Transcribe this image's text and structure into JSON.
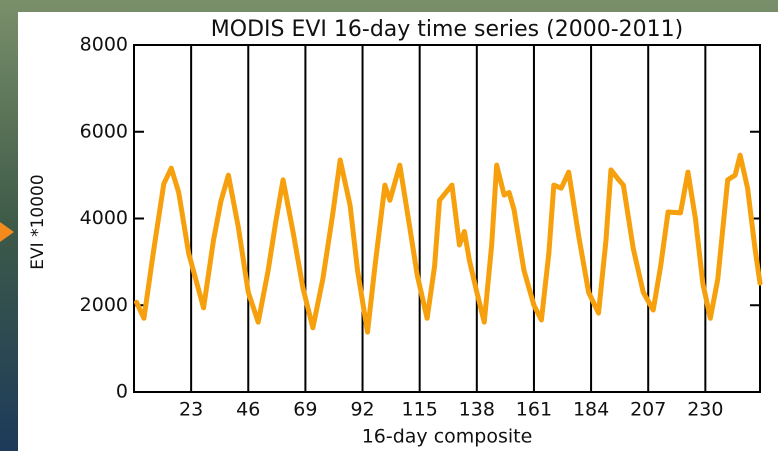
{
  "chart_data": {
    "type": "line",
    "title": "MODIS EVI 16-day time series (2000-2011)",
    "x_label": "16-day composite",
    "y_label": "EVI *10000",
    "xlim": [
      0,
      252
    ],
    "ylim": [
      0,
      8000
    ],
    "xticks": [
      23,
      46,
      69,
      92,
      115,
      138,
      161,
      184,
      207,
      230
    ],
    "yticks": [
      0,
      2000,
      4000,
      6000,
      8000
    ],
    "grid": true,
    "color": "#f5a00c",
    "x": [
      1,
      4,
      8,
      12,
      15,
      18,
      22,
      28,
      32,
      35,
      38,
      42,
      46,
      50,
      54,
      57,
      60,
      64,
      68,
      72,
      76,
      80,
      83,
      87,
      90,
      94,
      97,
      101,
      103,
      107,
      111,
      114,
      118,
      121,
      123,
      128,
      131,
      133,
      135,
      138,
      141,
      144,
      146,
      149,
      151,
      153,
      157,
      161,
      164,
      167,
      169,
      172,
      175,
      179,
      183,
      187,
      190,
      192,
      195,
      197,
      201,
      205,
      209,
      212,
      215,
      220,
      223,
      226,
      229,
      232,
      235,
      239,
      242,
      244,
      247,
      250,
      252
    ],
    "values": [
      2070,
      1700,
      3300,
      4800,
      5160,
      4600,
      3200,
      1940,
      3500,
      4400,
      5000,
      3800,
      2300,
      1610,
      2800,
      3900,
      4890,
      3700,
      2400,
      1480,
      2600,
      4100,
      5350,
      4300,
      2800,
      1380,
      2900,
      4770,
      4420,
      5230,
      3800,
      2700,
      1700,
      2900,
      4420,
      4770,
      3390,
      3700,
      3040,
      2300,
      1610,
      3400,
      5230,
      4540,
      4600,
      4200,
      2800,
      2000,
      1660,
      3200,
      4770,
      4700,
      5070,
      3600,
      2300,
      1820,
      3500,
      5120,
      4900,
      4770,
      3300,
      2300,
      1890,
      2900,
      4150,
      4130,
      5070,
      4000,
      2500,
      1700,
      2600,
      4890,
      5000,
      5460,
      4700,
      3300,
      2510
    ]
  }
}
